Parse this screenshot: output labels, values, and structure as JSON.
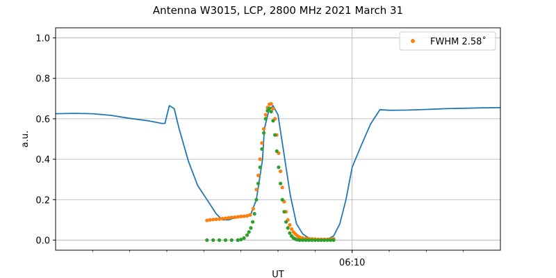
{
  "chart_data": {
    "type": "line",
    "title": "Antenna W3015, LCP, 2800 MHz 2021 March 31",
    "xlabel": "UT",
    "ylabel": "a.u.",
    "xlim": [
      "06:02:00",
      "06:14:00"
    ],
    "ylim": [
      -0.05,
      1.05
    ],
    "yticks": [
      0.0,
      0.2,
      0.4,
      0.6,
      0.8,
      1.0
    ],
    "xticks": [
      {
        "time": "06:10:00",
        "label": "06:10"
      }
    ],
    "grid": true,
    "legend": {
      "position": "top-right",
      "entries": [
        {
          "label": "FWHM 2.58$^\\circ$",
          "display": "FWHM 2.58˚",
          "marker": "dot",
          "color": "#ff7f0e"
        }
      ]
    },
    "series": [
      {
        "style": "line",
        "color": "#1f77b4",
        "x": [
          "06:02:00",
          "06:02:30",
          "06:03:00",
          "06:03:30",
          "06:04:00",
          "06:04:30",
          "06:04:52",
          "06:04:57",
          "06:05:04",
          "06:05:12",
          "06:05:20",
          "06:05:35",
          "06:05:50",
          "06:06:05",
          "06:06:20",
          "06:06:30",
          "06:06:40",
          "06:06:50",
          "06:07:05",
          "06:07:15",
          "06:07:25",
          "06:07:35",
          "06:07:38",
          "06:07:45",
          "06:07:52",
          "06:08:00",
          "06:08:10",
          "06:08:20",
          "06:08:30",
          "06:08:40",
          "06:08:50",
          "06:09:00",
          "06:09:10",
          "06:09:20",
          "06:09:30",
          "06:09:40",
          "06:09:50",
          "06:10:00",
          "06:10:15",
          "06:10:30",
          "06:10:45",
          "06:11:00",
          "06:11:30",
          "06:12:00",
          "06:12:30",
          "06:13:00",
          "06:13:30",
          "06:14:00"
        ],
        "y": [
          0.625,
          0.627,
          0.625,
          0.617,
          0.602,
          0.59,
          0.577,
          0.577,
          0.665,
          0.65,
          0.55,
          0.39,
          0.27,
          0.2,
          0.13,
          0.1,
          0.1,
          0.11,
          0.115,
          0.12,
          0.2,
          0.4,
          0.55,
          0.64,
          0.665,
          0.62,
          0.42,
          0.22,
          0.08,
          0.03,
          0.01,
          0.005,
          0.005,
          0.005,
          0.02,
          0.08,
          0.2,
          0.36,
          0.47,
          0.575,
          0.645,
          0.642,
          0.643,
          0.646,
          0.65,
          0.652,
          0.654,
          0.655
        ]
      },
      {
        "style": "dots",
        "color": "#ff7f0e",
        "name": "FWHM 2.58˚",
        "x": [
          "06:06:05",
          "06:06:10",
          "06:06:15",
          "06:06:20",
          "06:06:25",
          "06:06:30",
          "06:06:35",
          "06:06:40",
          "06:06:45",
          "06:06:50",
          "06:06:55",
          "06:07:00",
          "06:07:05",
          "06:07:10",
          "06:07:15",
          "06:07:20",
          "06:07:25",
          "06:07:28",
          "06:07:31",
          "06:07:34",
          "06:07:37",
          "06:07:40",
          "06:07:43",
          "06:07:46",
          "06:07:49",
          "06:07:52",
          "06:07:55",
          "06:07:58",
          "06:08:01",
          "06:08:04",
          "06:08:07",
          "06:08:10",
          "06:08:13",
          "06:08:16",
          "06:08:19",
          "06:08:22",
          "06:08:25",
          "06:08:28",
          "06:08:31",
          "06:08:34",
          "06:08:37",
          "06:08:40",
          "06:08:45",
          "06:08:50",
          "06:08:55",
          "06:09:00",
          "06:09:05",
          "06:09:10",
          "06:09:15",
          "06:09:20",
          "06:09:25",
          "06:09:30"
        ],
        "y": [
          0.097,
          0.1,
          0.102,
          0.103,
          0.104,
          0.106,
          0.108,
          0.11,
          0.112,
          0.113,
          0.115,
          0.117,
          0.118,
          0.12,
          0.125,
          0.155,
          0.25,
          0.32,
          0.4,
          0.48,
          0.55,
          0.62,
          0.655,
          0.672,
          0.674,
          0.65,
          0.6,
          0.52,
          0.43,
          0.34,
          0.26,
          0.19,
          0.14,
          0.1,
          0.075,
          0.055,
          0.04,
          0.03,
          0.022,
          0.016,
          0.012,
          0.01,
          0.008,
          0.007,
          0.006,
          0.005,
          0.004,
          0.004,
          0.004,
          0.004,
          0.005,
          0.006
        ]
      },
      {
        "style": "dots",
        "color": "#2ca02c",
        "x": [
          "06:06:05",
          "06:06:15",
          "06:06:25",
          "06:06:35",
          "06:06:45",
          "06:06:55",
          "06:07:00",
          "06:07:05",
          "06:07:10",
          "06:07:13",
          "06:07:16",
          "06:07:19",
          "06:07:22",
          "06:07:25",
          "06:07:28",
          "06:07:31",
          "06:07:34",
          "06:07:37",
          "06:07:40",
          "06:07:43",
          "06:07:46",
          "06:07:49",
          "06:07:52",
          "06:07:55",
          "06:07:58",
          "06:08:01",
          "06:08:04",
          "06:08:07",
          "06:08:10",
          "06:08:13",
          "06:08:16",
          "06:08:19",
          "06:08:22",
          "06:08:25",
          "06:08:28",
          "06:08:31",
          "06:08:35",
          "06:08:40",
          "06:08:45",
          "06:08:50",
          "06:08:55",
          "06:09:00",
          "06:09:05",
          "06:09:10",
          "06:09:15",
          "06:09:20",
          "06:09:25",
          "06:09:30"
        ],
        "y": [
          0.0,
          0.0,
          0.0,
          0.0,
          0.0,
          0.0,
          0.003,
          0.01,
          0.025,
          0.04,
          0.06,
          0.09,
          0.13,
          0.2,
          0.28,
          0.36,
          0.45,
          0.53,
          0.6,
          0.64,
          0.652,
          0.635,
          0.59,
          0.52,
          0.44,
          0.36,
          0.28,
          0.2,
          0.14,
          0.09,
          0.06,
          0.035,
          0.02,
          0.01,
          0.005,
          0.002,
          0.0,
          0.0,
          0.0,
          0.0,
          0.0,
          0.0,
          0.0,
          0.0,
          0.0,
          0.0,
          0.0,
          0.0
        ]
      }
    ]
  }
}
